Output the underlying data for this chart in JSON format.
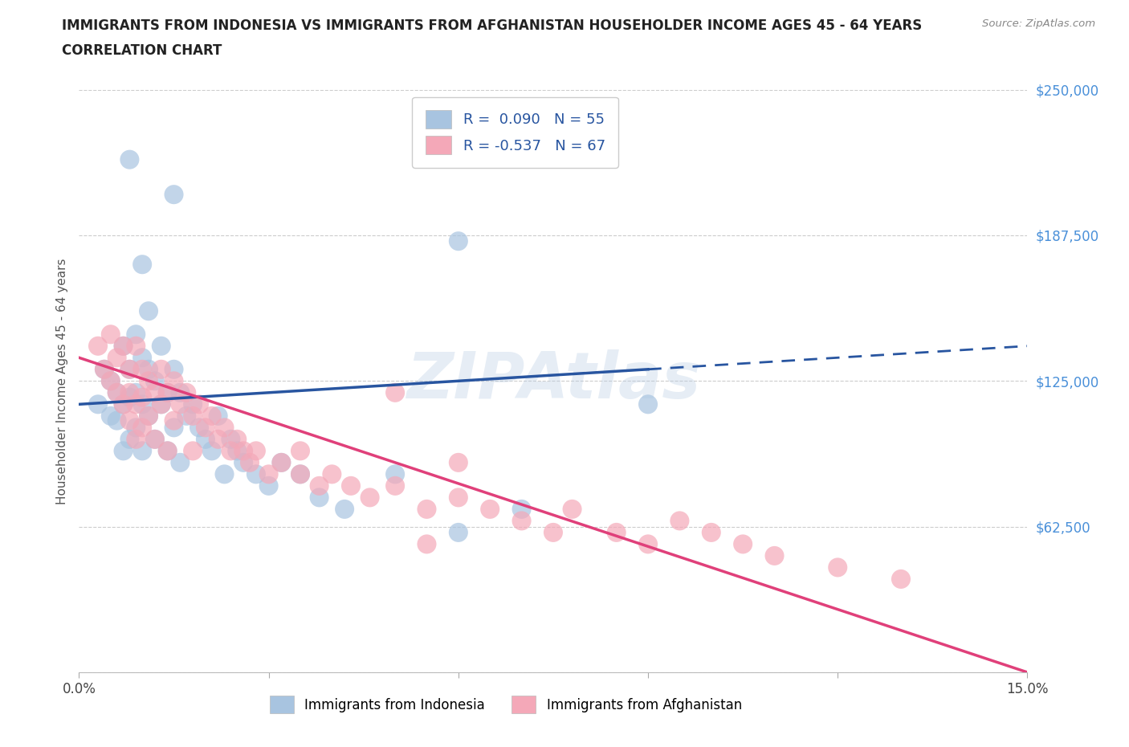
{
  "title_line1": "IMMIGRANTS FROM INDONESIA VS IMMIGRANTS FROM AFGHANISTAN HOUSEHOLDER INCOME AGES 45 - 64 YEARS",
  "title_line2": "CORRELATION CHART",
  "source_text": "Source: ZipAtlas.com",
  "ylabel": "Householder Income Ages 45 - 64 years",
  "xlim": [
    0.0,
    0.15
  ],
  "ylim": [
    0,
    250000
  ],
  "yticks": [
    0,
    62500,
    125000,
    187500,
    250000
  ],
  "ytick_labels": [
    "",
    "$62,500",
    "$125,000",
    "$187,500",
    "$250,000"
  ],
  "xticks": [
    0.0,
    0.03,
    0.06,
    0.09,
    0.12,
    0.15
  ],
  "xtick_labels": [
    "0.0%",
    "",
    "",
    "",
    "",
    "15.0%"
  ],
  "r_indonesia": 0.09,
  "n_indonesia": 55,
  "r_afghanistan": -0.537,
  "n_afghanistan": 67,
  "color_indonesia": "#a8c4e0",
  "color_afghanistan": "#f4a8b8",
  "trend_color_indonesia": "#2855a0",
  "trend_color_afghanistan": "#e0407a",
  "legend_label_indonesia": "Immigrants from Indonesia",
  "legend_label_afghanistan": "Immigrants from Afghanistan",
  "watermark": "ZIPAtlas",
  "hgrid_color": "#cccccc",
  "background_color": "#ffffff",
  "indonesia_x": [
    0.003,
    0.004,
    0.005,
    0.005,
    0.006,
    0.006,
    0.007,
    0.007,
    0.007,
    0.008,
    0.008,
    0.008,
    0.009,
    0.009,
    0.009,
    0.01,
    0.01,
    0.01,
    0.011,
    0.011,
    0.011,
    0.012,
    0.012,
    0.013,
    0.013,
    0.014,
    0.014,
    0.015,
    0.015,
    0.016,
    0.016,
    0.017,
    0.018,
    0.019,
    0.02,
    0.021,
    0.022,
    0.023,
    0.024,
    0.025,
    0.026,
    0.028,
    0.03,
    0.032,
    0.035,
    0.038,
    0.042,
    0.05,
    0.06,
    0.07,
    0.015,
    0.01,
    0.008,
    0.06,
    0.09
  ],
  "indonesia_y": [
    115000,
    130000,
    110000,
    125000,
    120000,
    108000,
    140000,
    115000,
    95000,
    130000,
    118000,
    100000,
    145000,
    120000,
    105000,
    135000,
    115000,
    95000,
    130000,
    110000,
    155000,
    125000,
    100000,
    140000,
    115000,
    120000,
    95000,
    130000,
    105000,
    120000,
    90000,
    110000,
    115000,
    105000,
    100000,
    95000,
    110000,
    85000,
    100000,
    95000,
    90000,
    85000,
    80000,
    90000,
    85000,
    75000,
    70000,
    85000,
    60000,
    70000,
    205000,
    175000,
    220000,
    185000,
    115000
  ],
  "afghanistan_x": [
    0.003,
    0.004,
    0.005,
    0.005,
    0.006,
    0.006,
    0.007,
    0.007,
    0.008,
    0.008,
    0.008,
    0.009,
    0.009,
    0.009,
    0.01,
    0.01,
    0.01,
    0.011,
    0.011,
    0.012,
    0.012,
    0.013,
    0.013,
    0.014,
    0.014,
    0.015,
    0.015,
    0.016,
    0.017,
    0.018,
    0.018,
    0.019,
    0.02,
    0.021,
    0.022,
    0.023,
    0.024,
    0.025,
    0.026,
    0.027,
    0.028,
    0.03,
    0.032,
    0.035,
    0.038,
    0.04,
    0.043,
    0.046,
    0.05,
    0.055,
    0.06,
    0.065,
    0.07,
    0.075,
    0.078,
    0.085,
    0.09,
    0.095,
    0.1,
    0.105,
    0.11,
    0.12,
    0.13,
    0.035,
    0.055,
    0.06,
    0.05
  ],
  "afghanistan_y": [
    140000,
    130000,
    145000,
    125000,
    135000,
    120000,
    140000,
    115000,
    130000,
    120000,
    108000,
    140000,
    115000,
    100000,
    130000,
    118000,
    105000,
    125000,
    110000,
    120000,
    100000,
    130000,
    115000,
    120000,
    95000,
    125000,
    108000,
    115000,
    120000,
    110000,
    95000,
    115000,
    105000,
    110000,
    100000,
    105000,
    95000,
    100000,
    95000,
    90000,
    95000,
    85000,
    90000,
    85000,
    80000,
    85000,
    80000,
    75000,
    80000,
    70000,
    75000,
    70000,
    65000,
    60000,
    70000,
    60000,
    55000,
    65000,
    60000,
    55000,
    50000,
    45000,
    40000,
    95000,
    55000,
    90000,
    120000
  ]
}
